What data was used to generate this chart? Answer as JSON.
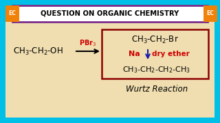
{
  "title": "QUESTION ON ORGANIC CHEMISTRY",
  "title_color": "#000000",
  "title_bg": "#ffffff",
  "title_border": "#7b2d8b",
  "bg_color": "#f0deb0",
  "outer_bg": "#00c0e8",
  "ec_label": "EC",
  "ec_bg": "#f0820a",
  "ec_text_color": "#ffffff",
  "reactant": "CH$_3$-CH$_2$-OH",
  "reagent_above": "PBr$_3$",
  "reagent_above_color": "#cc0000",
  "product1": "CH$_3$-CH$_2$-Br",
  "reagent_mid_left": "Na",
  "reagent_mid_left_color": "#cc0000",
  "reagent_mid_right": "dry ether",
  "reagent_mid_right_color": "#cc0000",
  "product2": "CH$_3$-CH$_2$-CH$_2$-CH$_3$",
  "product_box_color": "#8b0000",
  "arrow_color": "#000000",
  "down_arrow_color": "#1a1aaa",
  "wurtz": "Wurtz Reaction",
  "wurtz_color": "#000000"
}
